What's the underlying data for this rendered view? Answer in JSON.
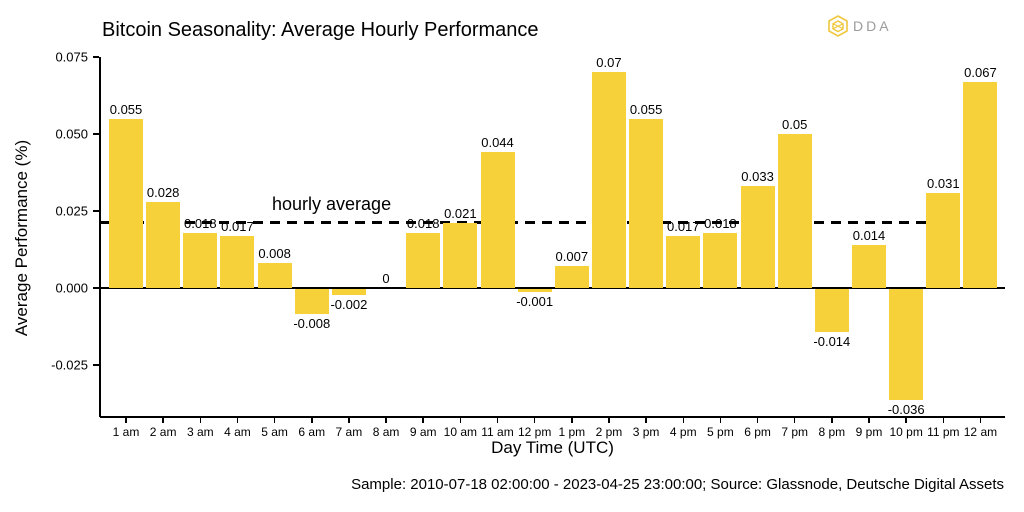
{
  "header": {
    "logo": {
      "text": "DDA",
      "icon": "hexagon-cube-icon",
      "icon_color": "#EFC73C",
      "text_color": "#9B9B9B"
    }
  },
  "chart": {
    "title": "Bitcoin Seasonality: Average Hourly Performance",
    "annotation": "hourly average",
    "xlabel": "Day Time (UTC)",
    "ylabel": "Average Performance (%)",
    "caption": "Sample: 2010-07-18 02:00:00 - 2023-04-25 23:00:00; Source: Glassnode, Deutsche Digital Assets",
    "bar_color": "#F6D13A",
    "axis_color": "#000000"
  },
  "chart_data": {
    "type": "bar",
    "title": "Bitcoin Seasonality: Average Hourly Performance",
    "xlabel": "Day Time (UTC)",
    "ylabel": "Average Performance (%)",
    "categories": [
      "1 am",
      "2 am",
      "3 am",
      "4 am",
      "5 am",
      "6 am",
      "7 am",
      "8 am",
      "9 am",
      "10 am",
      "11 am",
      "12 pm",
      "1 pm",
      "2 pm",
      "3 pm",
      "4 pm",
      "5 pm",
      "6 pm",
      "7 pm",
      "8 pm",
      "9 pm",
      "10 pm",
      "11 pm",
      "12 am"
    ],
    "values": [
      0.055,
      0.028,
      0.018,
      0.017,
      0.008,
      -0.008,
      -0.002,
      0,
      0.018,
      0.021,
      0.044,
      -0.001,
      0.007,
      0.07,
      0.055,
      0.017,
      0.018,
      0.033,
      0.05,
      -0.014,
      0.014,
      -0.036,
      0.031,
      0.067
    ],
    "value_labels": [
      "0.055",
      "0.028",
      "0.018",
      "0.017",
      "0.008",
      "-0.008",
      "-0.002",
      "0",
      "0.018",
      "0.021",
      "0.044",
      "-0.001",
      "0.007",
      "0.07",
      "0.055",
      "0.017",
      "0.018",
      "0.033",
      "0.05",
      "-0.014",
      "0.014",
      "-0.036",
      "0.031",
      "0.067"
    ],
    "y_ticks": [
      0.075,
      0.05,
      0.025,
      0,
      -0.025
    ],
    "y_tick_labels": [
      "0.075",
      "0.050",
      "0.025",
      "0.000",
      "-0.025"
    ],
    "ylim": [
      -0.0425,
      0.075
    ],
    "hourly_average_line": 0.0213,
    "annotation": "hourly average",
    "grid": false,
    "legend_position": "none",
    "bar_color": "#F6D13A"
  }
}
